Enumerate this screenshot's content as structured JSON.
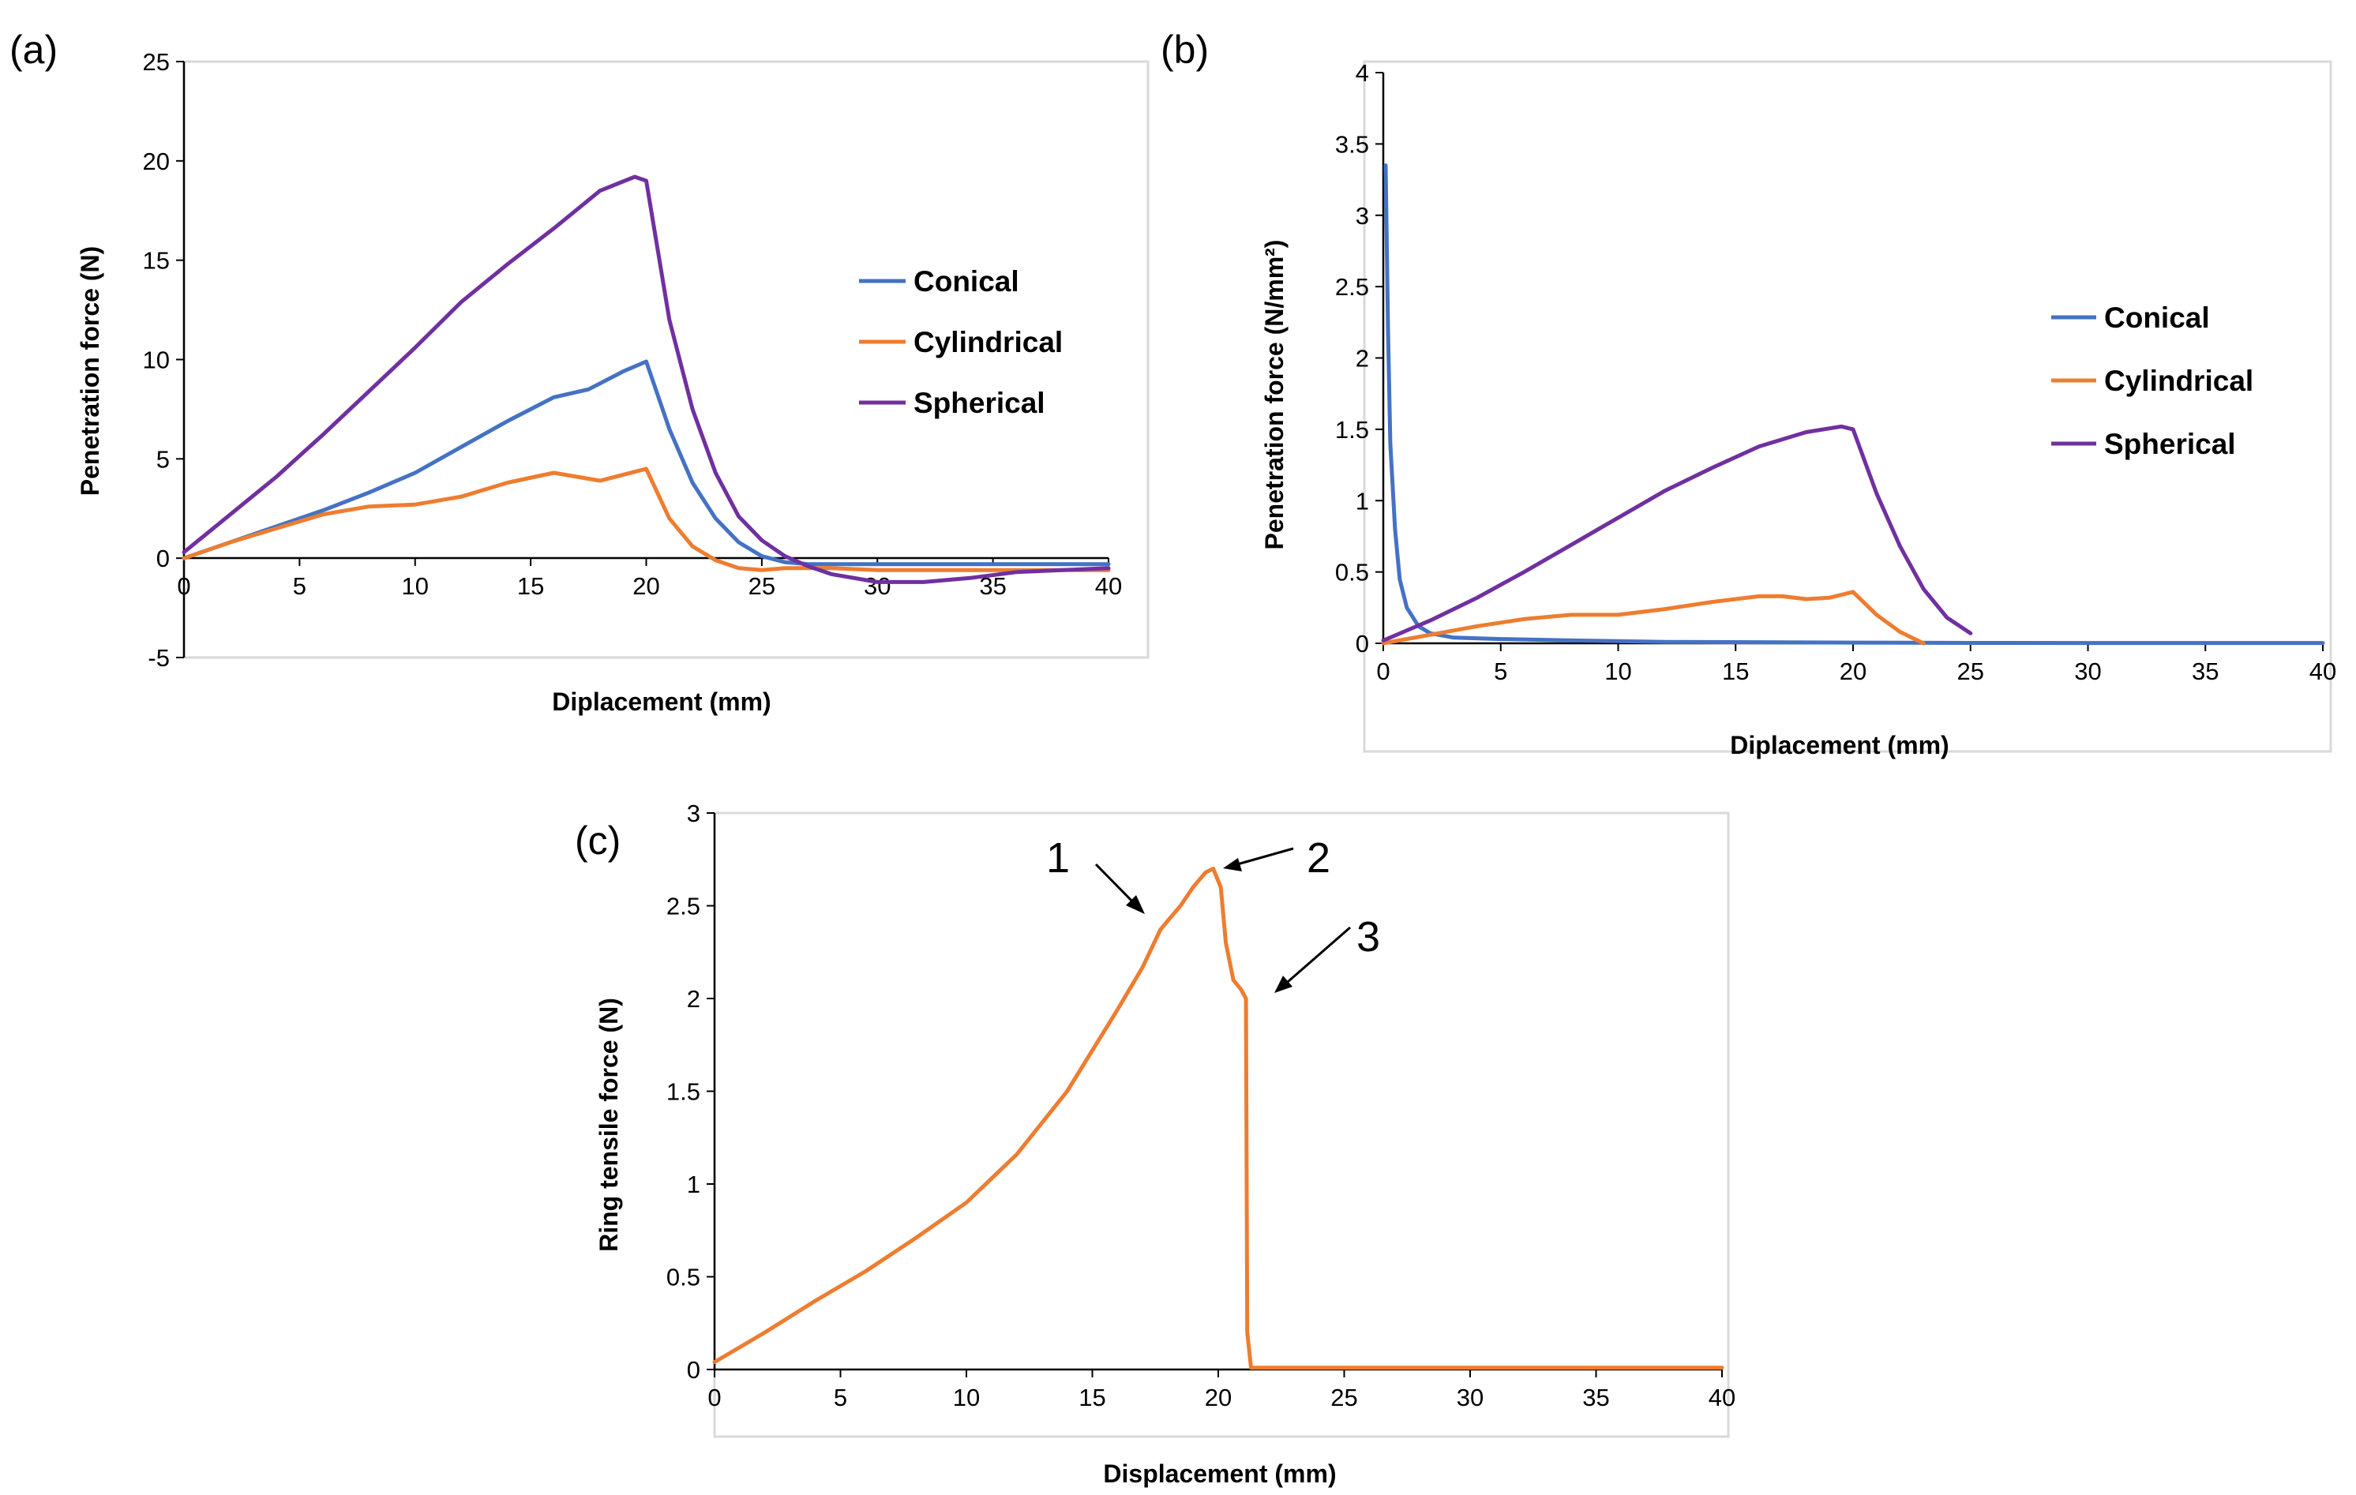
{
  "chart_data": [
    {
      "id": "a",
      "type": "line",
      "panel_label": "(a)",
      "xlabel": "Diplacement (mm)",
      "ylabel": "Penetration force (N)",
      "xlim": [
        0,
        40
      ],
      "ylim": [
        -5,
        25
      ],
      "xticks": [
        "0",
        "5",
        "10",
        "15",
        "20",
        "25",
        "30",
        "35",
        "40"
      ],
      "yticks": [
        "-5",
        "0",
        "5",
        "10",
        "15",
        "20",
        "25"
      ],
      "legend_position": "right",
      "series": [
        {
          "name": "Conical",
          "color": "#4472C4",
          "x": [
            0,
            2,
            4,
            6,
            8,
            10,
            12,
            14,
            16,
            17.5,
            19,
            20,
            21,
            22,
            23,
            24,
            25,
            26,
            27,
            28,
            30,
            35,
            40
          ],
          "y": [
            0,
            0.8,
            1.6,
            2.4,
            3.3,
            4.3,
            5.6,
            6.9,
            8.1,
            8.5,
            9.4,
            9.9,
            6.5,
            3.8,
            2.0,
            0.8,
            0.1,
            -0.2,
            -0.3,
            -0.3,
            -0.3,
            -0.3,
            -0.3
          ]
        },
        {
          "name": "Cylindrical",
          "color": "#ED7D31",
          "x": [
            0,
            2,
            4,
            6,
            8,
            10,
            12,
            14,
            16,
            18,
            20,
            21,
            22,
            23,
            24,
            25,
            26,
            28,
            30,
            35,
            40
          ],
          "y": [
            0,
            0.8,
            1.5,
            2.2,
            2.6,
            2.7,
            3.1,
            3.8,
            4.3,
            3.9,
            4.5,
            2.0,
            0.6,
            -0.1,
            -0.5,
            -0.6,
            -0.5,
            -0.5,
            -0.6,
            -0.6,
            -0.6
          ]
        },
        {
          "name": "Spherical",
          "color": "#7030A0",
          "x": [
            0,
            2,
            4,
            6,
            8,
            10,
            12,
            14,
            16,
            18,
            19.5,
            20,
            21,
            22,
            23,
            24,
            25,
            26,
            27,
            28,
            30,
            32,
            34,
            36,
            40
          ],
          "y": [
            0.3,
            2.2,
            4.1,
            6.2,
            8.4,
            10.6,
            12.9,
            14.8,
            16.6,
            18.5,
            19.2,
            19.0,
            12.0,
            7.5,
            4.3,
            2.1,
            0.9,
            0.1,
            -0.4,
            -0.8,
            -1.2,
            -1.2,
            -1.0,
            -0.7,
            -0.5
          ]
        }
      ]
    },
    {
      "id": "b",
      "type": "line",
      "panel_label": "(b)",
      "xlabel": "Diplacement (mm)",
      "ylabel": "Penetration force (N/mm²)",
      "xlim": [
        0,
        40
      ],
      "ylim": [
        0,
        4
      ],
      "xticks": [
        "0",
        "5",
        "10",
        "15",
        "20",
        "25",
        "30",
        "35",
        "40"
      ],
      "yticks": [
        "0",
        "0.5",
        "1",
        "1.5",
        "2",
        "2.5",
        "3",
        "3.5",
        "4"
      ],
      "legend_position": "right",
      "series": [
        {
          "name": "Conical",
          "color": "#4472C4",
          "x": [
            0.1,
            0.2,
            0.3,
            0.5,
            0.7,
            1.0,
            1.5,
            2,
            3,
            5,
            8,
            12,
            20,
            25,
            30,
            40
          ],
          "y": [
            3.35,
            2.2,
            1.4,
            0.8,
            0.45,
            0.25,
            0.12,
            0.07,
            0.04,
            0.03,
            0.02,
            0.01,
            0.005,
            0.003,
            0.002,
            0.002
          ]
        },
        {
          "name": "Cylindrical",
          "color": "#ED7D31",
          "x": [
            0,
            2,
            4,
            6,
            8,
            10,
            12,
            14,
            16,
            17,
            18,
            19,
            20,
            21,
            22,
            23
          ],
          "y": [
            0,
            0.06,
            0.12,
            0.17,
            0.2,
            0.2,
            0.24,
            0.29,
            0.33,
            0.33,
            0.31,
            0.32,
            0.36,
            0.2,
            0.08,
            0
          ]
        },
        {
          "name": "Spherical",
          "color": "#7030A0",
          "x": [
            0,
            2,
            4,
            6,
            8,
            10,
            12,
            14,
            16,
            18,
            19.5,
            20,
            21,
            22,
            23,
            24,
            25
          ],
          "y": [
            0.02,
            0.16,
            0.32,
            0.5,
            0.69,
            0.88,
            1.07,
            1.23,
            1.38,
            1.48,
            1.52,
            1.5,
            1.05,
            0.68,
            0.38,
            0.18,
            0.07
          ]
        }
      ]
    },
    {
      "id": "c",
      "type": "line",
      "panel_label": "(c)",
      "xlabel": "Displacement (mm)",
      "ylabel": "Ring tensile force (N)",
      "xlim": [
        0,
        40
      ],
      "ylim": [
        0,
        3
      ],
      "xticks": [
        "0",
        "5",
        "10",
        "15",
        "20",
        "25",
        "30",
        "35",
        "40"
      ],
      "yticks": [
        "0",
        "0.5",
        "1",
        "1.5",
        "2",
        "2.5",
        "3"
      ],
      "legend_position": "none",
      "series": [
        {
          "name": "Ring tensile",
          "color": "#ED7D31",
          "x": [
            0,
            2,
            4,
            6,
            8,
            10,
            12,
            14,
            16,
            17,
            17.7,
            18,
            18.5,
            19,
            19.5,
            19.8,
            20.1,
            20.3,
            20.6,
            20.9,
            21.1,
            21.15,
            21.3,
            25,
            30,
            35,
            40
          ],
          "y": [
            0.04,
            0.2,
            0.37,
            0.53,
            0.71,
            0.9,
            1.16,
            1.5,
            1.94,
            2.17,
            2.37,
            2.42,
            2.5,
            2.6,
            2.68,
            2.7,
            2.6,
            2.3,
            2.1,
            2.05,
            2.0,
            0.2,
            0.01,
            0.01,
            0.01,
            0.01,
            0.01
          ]
        }
      ],
      "annotations": [
        {
          "label": "1",
          "target": [
            18.0,
            2.4
          ]
        },
        {
          "label": "2",
          "target": [
            20.0,
            2.7
          ]
        },
        {
          "label": "3",
          "target": [
            21.2,
            2.03
          ]
        }
      ]
    }
  ]
}
